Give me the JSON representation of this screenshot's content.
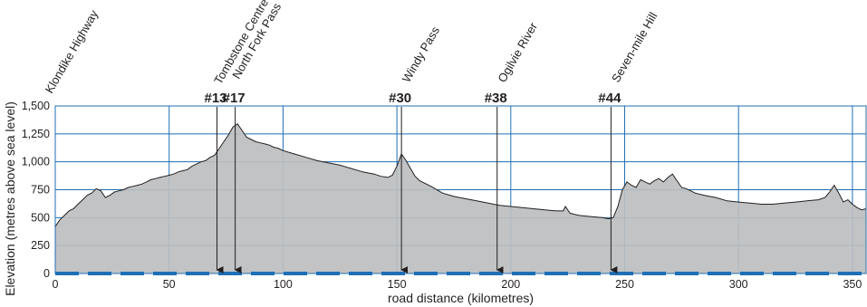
{
  "chart_data": {
    "type": "area",
    "title": "",
    "xlabel": "road distance (kilometres)",
    "ylabel": "Elevation (metres above sea level)",
    "xlim": [
      0,
      356
    ],
    "ylim": [
      0,
      1500
    ],
    "xticks": [
      0,
      50,
      100,
      150,
      200,
      250,
      300,
      350
    ],
    "xtick_labels": [
      "0",
      "50",
      "100",
      "150",
      "200",
      "250",
      "300",
      "350"
    ],
    "yticks": [
      0,
      250,
      500,
      750,
      1000,
      1250,
      1500
    ],
    "ytick_labels": [
      "0",
      "250",
      "500",
      "750",
      "1,000",
      "1,250",
      "1,500"
    ],
    "grid": true,
    "colors": {
      "fill": "#bcbec0",
      "line": "#231f20",
      "grid": "#1f6fb5",
      "axis_band": "#1f6fb5"
    },
    "series": [
      {
        "x": [
          0,
          2,
          4,
          6,
          8,
          10,
          12,
          14,
          16,
          18,
          20,
          22,
          24,
          26,
          28,
          30,
          32,
          34,
          36,
          38,
          40,
          42,
          44,
          46,
          48,
          50,
          52,
          54,
          56,
          58,
          60,
          62,
          64,
          66,
          68,
          70,
          72,
          74,
          76,
          78,
          80,
          82,
          84,
          86,
          88,
          90,
          92,
          94,
          96,
          98,
          100,
          105,
          110,
          115,
          120,
          125,
          130,
          135,
          140,
          143,
          146,
          148,
          150,
          152,
          154,
          156,
          158,
          160,
          165,
          170,
          175,
          180,
          185,
          190,
          195,
          200,
          205,
          210,
          215,
          220,
          223,
          224,
          226,
          230,
          235,
          240,
          243,
          245,
          247,
          249,
          251,
          253,
          255,
          257,
          259,
          261,
          263,
          265,
          267,
          269,
          271,
          273,
          275,
          277,
          279,
          281,
          285,
          290,
          295,
          300,
          305,
          310,
          315,
          320,
          325,
          330,
          335,
          338,
          340,
          342,
          344,
          346,
          348,
          350,
          352,
          354,
          356
        ],
        "values": [
          420,
          480,
          520,
          560,
          580,
          620,
          660,
          700,
          720,
          760,
          740,
          680,
          700,
          730,
          740,
          750,
          770,
          780,
          790,
          800,
          820,
          840,
          850,
          860,
          870,
          880,
          890,
          910,
          920,
          930,
          960,
          980,
          1000,
          1010,
          1040,
          1060,
          1120,
          1180,
          1240,
          1310,
          1340,
          1280,
          1220,
          1200,
          1180,
          1170,
          1160,
          1150,
          1130,
          1120,
          1100,
          1070,
          1040,
          1010,
          990,
          970,
          940,
          910,
          890,
          870,
          860,
          880,
          960,
          1070,
          1010,
          940,
          870,
          830,
          780,
          720,
          690,
          670,
          650,
          630,
          610,
          600,
          590,
          580,
          570,
          560,
          560,
          600,
          540,
          520,
          510,
          500,
          490,
          500,
          600,
          750,
          820,
          790,
          770,
          840,
          820,
          800,
          830,
          850,
          820,
          860,
          890,
          830,
          770,
          760,
          740,
          720,
          700,
          680,
          650,
          640,
          630,
          620,
          620,
          630,
          640,
          650,
          660,
          680,
          730,
          790,
          720,
          640,
          660,
          620,
          590,
          570,
          580
        ]
      }
    ],
    "annotations": [
      {
        "x": 0,
        "place": "Klondike Highway",
        "number": ""
      },
      {
        "x": 71,
        "place": "Tombstone Centre",
        "number": "#13"
      },
      {
        "x": 79,
        "place": "North Fork Pass",
        "number": "#17"
      },
      {
        "x": 152,
        "place": "Windy Pass",
        "number": "#30"
      },
      {
        "x": 194,
        "place": "Ogilvie River",
        "number": "#38"
      },
      {
        "x": 244,
        "place": "Seven-mile Hill",
        "number": "#44"
      }
    ]
  }
}
